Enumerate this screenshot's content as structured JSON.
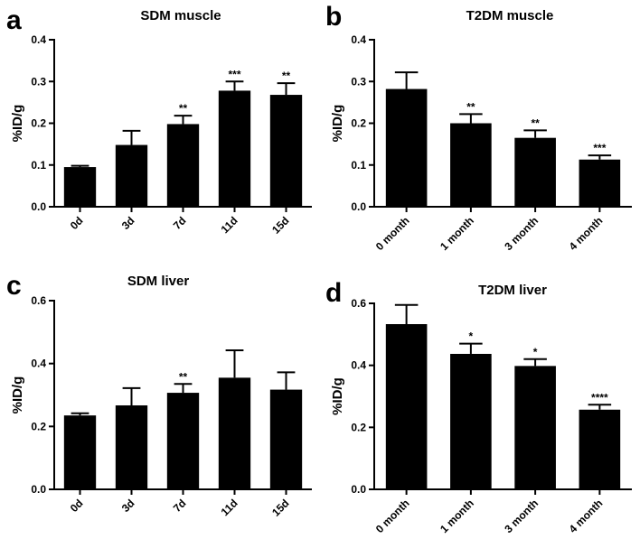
{
  "chart_data": [
    {
      "panel": "a",
      "type": "bar",
      "title": "SDM muscle",
      "ylabel": "%ID/g",
      "xlabel": "",
      "categories": [
        "0d",
        "3d",
        "7d",
        "11d",
        "15d"
      ],
      "values": [
        0.095,
        0.148,
        0.198,
        0.278,
        0.268
      ],
      "errors": [
        0.003,
        0.034,
        0.02,
        0.022,
        0.028
      ],
      "significance": [
        "",
        "",
        "**",
        "***",
        "**"
      ],
      "ylim": [
        0,
        0.4
      ],
      "yticks": [
        "0.0",
        "0.1",
        "0.2",
        "0.3",
        "0.4"
      ],
      "grid": false,
      "legend": "none",
      "color": "#000000"
    },
    {
      "panel": "b",
      "type": "bar",
      "title": "T2DM  muscle",
      "ylabel": "%ID/g",
      "xlabel": "",
      "categories": [
        "0 month",
        "1 month",
        "3 month",
        "4 month"
      ],
      "values": [
        0.282,
        0.2,
        0.165,
        0.113
      ],
      "errors": [
        0.04,
        0.022,
        0.018,
        0.01
      ],
      "significance": [
        "",
        "**",
        "**",
        "***"
      ],
      "ylim": [
        0,
        0.4
      ],
      "yticks": [
        "0.0",
        "0.1",
        "0.2",
        "0.3",
        "0.4"
      ],
      "grid": false,
      "legend": "none",
      "color": "#000000"
    },
    {
      "panel": "c",
      "type": "bar",
      "title": "SDM  liver",
      "ylabel": "%ID/g",
      "xlabel": "",
      "categories": [
        "0d",
        "3d",
        "7d",
        "11d",
        "15d"
      ],
      "values": [
        0.235,
        0.267,
        0.307,
        0.355,
        0.317
      ],
      "errors": [
        0.007,
        0.055,
        0.028,
        0.087,
        0.055
      ],
      "significance": [
        "",
        "",
        "**",
        "",
        ""
      ],
      "ylim": [
        0,
        0.6
      ],
      "yticks": [
        "0.0",
        "0.2",
        "0.4",
        "0.6"
      ],
      "grid": false,
      "legend": "none",
      "color": "#000000"
    },
    {
      "panel": "d",
      "type": "bar",
      "title": "T2DM liver",
      "ylabel": "%ID/g",
      "xlabel": "",
      "categories": [
        "0 month",
        "1 month",
        "3 month",
        "4 month"
      ],
      "values": [
        0.533,
        0.437,
        0.398,
        0.257
      ],
      "errors": [
        0.062,
        0.033,
        0.022,
        0.016
      ],
      "significance": [
        "",
        "*",
        "*",
        "****"
      ],
      "ylim": [
        0,
        0.6
      ],
      "yticks": [
        "0.0",
        "0.2",
        "0.4",
        "0.6"
      ],
      "grid": false,
      "legend": "none",
      "color": "#000000"
    }
  ]
}
